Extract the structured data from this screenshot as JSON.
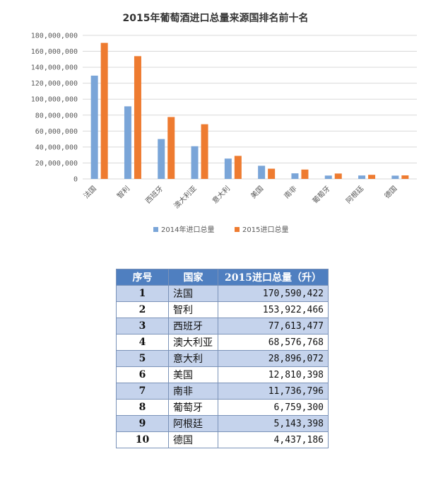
{
  "chart_data": {
    "type": "bar",
    "title": "2015年葡萄酒进口总量来源国排名前十名",
    "categories": [
      "法国",
      "智利",
      "西班牙",
      "澳大利亚",
      "意大利",
      "美国",
      "南非",
      "葡萄牙",
      "阿根廷",
      "德国"
    ],
    "series": [
      {
        "name": "2014年进口总量",
        "color": "#7aa5d8",
        "values": [
          129500000,
          91000000,
          50000000,
          41000000,
          25500000,
          16500000,
          7000000,
          4200000,
          4300000,
          4100000
        ]
      },
      {
        "name": "2015进口总量",
        "color": "#ee7b30",
        "values": [
          170590422,
          153922466,
          77613477,
          68576768,
          28896072,
          12810398,
          11736796,
          6759300,
          5143398,
          4437186
        ]
      }
    ],
    "ylim": [
      0,
      180000000
    ],
    "yticks": [
      "0",
      "20,000,000",
      "40,000,000",
      "60,000,000",
      "80,000,000",
      "100,000,000",
      "120,000,000",
      "140,000,000",
      "160,000,000",
      "180,000,000"
    ],
    "grid": true,
    "legend": "bottom"
  },
  "table": {
    "headers": [
      "序号",
      "国家",
      "2015进口总量（升）"
    ],
    "rows": [
      [
        "1",
        "法国",
        "170,590,422"
      ],
      [
        "2",
        "智利",
        "153,922,466"
      ],
      [
        "3",
        "西班牙",
        "77,613,477"
      ],
      [
        "4",
        "澳大利亚",
        "68,576,768"
      ],
      [
        "5",
        "意大利",
        "28,896,072"
      ],
      [
        "6",
        "美国",
        "12,810,398"
      ],
      [
        "7",
        "南非",
        "11,736,796"
      ],
      [
        "8",
        "葡萄牙",
        "6,759,300"
      ],
      [
        "9",
        "阿根廷",
        "5,143,398"
      ],
      [
        "10",
        "德国",
        "4,437,186"
      ]
    ]
  },
  "colors": {
    "grid": "#d9d9d9",
    "header_bg": "#4f7fc0",
    "row_shade": "#c5d3ec"
  }
}
